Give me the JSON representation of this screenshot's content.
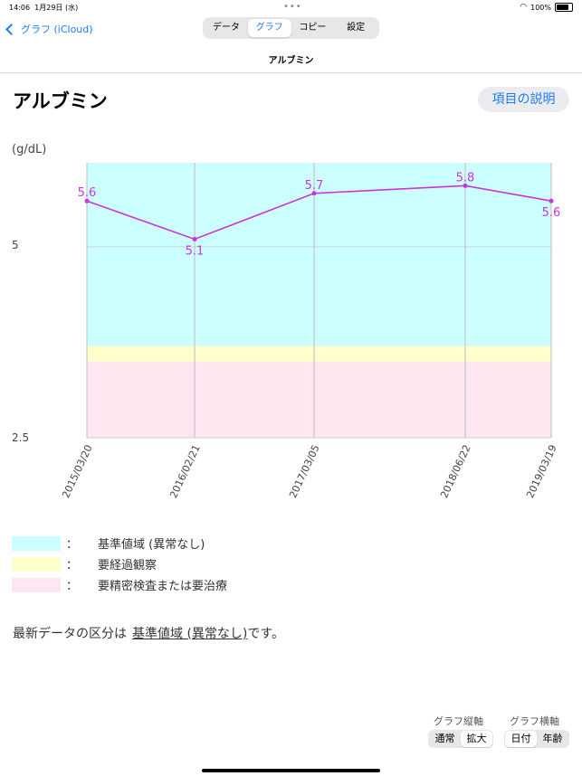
{
  "status": {
    "time": "14:06",
    "date": "1月29日 (水)",
    "battery": "100%"
  },
  "nav": {
    "back_label": "グラフ (iCloud)",
    "tabs": [
      {
        "label": "データ",
        "active": false
      },
      {
        "label": "グラフ",
        "active": true
      },
      {
        "label": "コピー",
        "active": false
      },
      {
        "label": "設定",
        "active": false
      }
    ],
    "title": "アルブミン"
  },
  "page": {
    "title": "アルブミン",
    "explain_button": "項目の説明"
  },
  "chart_data": {
    "type": "line",
    "ylabel": "(g/dL)",
    "y_ticks": [
      "5",
      "2.5"
    ],
    "ylim": [
      2.5,
      6.1
    ],
    "x": [
      "2015/03/20",
      "2016/02/21",
      "2017/03/05",
      "2018/06/22",
      "2019/03/19"
    ],
    "values": [
      5.6,
      5.1,
      5.7,
      5.8,
      5.6
    ],
    "value_labels": [
      "5.6",
      "5.1",
      "5.7",
      "5.8",
      "5.6"
    ],
    "bands": [
      {
        "from": 3.7,
        "to": 6.1,
        "color": "#ccffff"
      },
      {
        "from": 3.5,
        "to": 3.7,
        "color": "#ffffcc"
      },
      {
        "from": 2.5,
        "to": 3.5,
        "color": "#ffe6f0"
      }
    ],
    "line_color": "#cc33dd",
    "label_color": "#cc33dd"
  },
  "legend": [
    {
      "color": "#ccffff",
      "label": "基準値域 (異常なし)"
    },
    {
      "color": "#ffffcc",
      "label": "要経過観察"
    },
    {
      "color": "#ffe6f0",
      "label": "要精密検査または要治療"
    }
  ],
  "legend_colon": "：",
  "summary": {
    "prefix": "最新データの区分は",
    "value": "基準値域 (異常なし)",
    "suffix": "です。"
  },
  "controls": {
    "vertical": {
      "label": "グラフ縦軸",
      "options": [
        "通常",
        "拡大"
      ],
      "selected": 1
    },
    "horizontal": {
      "label": "グラフ横軸",
      "options": [
        "日付",
        "年齢"
      ],
      "selected": 0
    }
  }
}
